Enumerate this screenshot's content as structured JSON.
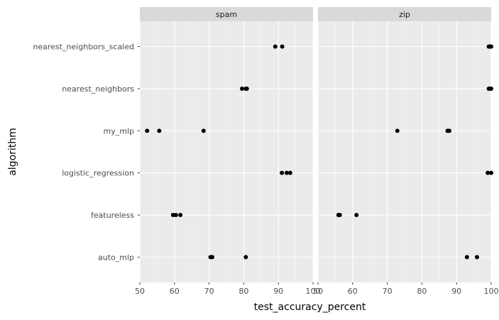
{
  "chart_data": {
    "type": "scatter",
    "title": "",
    "xlabel": "test_accuracy_percent",
    "ylabel": "algorithm",
    "xlim": [
      50,
      100
    ],
    "x_ticks": [
      50,
      60,
      70,
      80,
      90,
      100
    ],
    "categories": [
      "auto_mlp",
      "featureless",
      "logistic_regression",
      "my_mlp",
      "nearest_neighbors",
      "nearest_neighbors_scaled"
    ],
    "grid": true,
    "legend": "none",
    "colors": {
      "panel_bg": "#ebebeb",
      "strip_bg": "#d9d9d9",
      "grid_major": "#ffffff",
      "point": "#000000"
    },
    "facets": [
      {
        "name": "spam",
        "points": [
          {
            "algorithm": "nearest_neighbors_scaled",
            "x": 89.1
          },
          {
            "algorithm": "nearest_neighbors_scaled",
            "x": 91.1
          },
          {
            "algorithm": "nearest_neighbors",
            "x": 79.5
          },
          {
            "algorithm": "nearest_neighbors",
            "x": 80.6
          },
          {
            "algorithm": "nearest_neighbors",
            "x": 80.9
          },
          {
            "algorithm": "my_mlp",
            "x": 52.1
          },
          {
            "algorithm": "my_mlp",
            "x": 55.6
          },
          {
            "algorithm": "my_mlp",
            "x": 68.4
          },
          {
            "algorithm": "logistic_regression",
            "x": 91.0
          },
          {
            "algorithm": "logistic_regression",
            "x": 92.4
          },
          {
            "algorithm": "logistic_regression",
            "x": 93.4
          },
          {
            "algorithm": "featureless",
            "x": 59.6
          },
          {
            "algorithm": "featureless",
            "x": 60.4
          },
          {
            "algorithm": "featureless",
            "x": 61.7
          },
          {
            "algorithm": "auto_mlp",
            "x": 70.4
          },
          {
            "algorithm": "auto_mlp",
            "x": 70.9
          },
          {
            "algorithm": "auto_mlp",
            "x": 80.6
          }
        ]
      },
      {
        "name": "zip",
        "points": [
          {
            "algorithm": "nearest_neighbors_scaled",
            "x": 99.3
          },
          {
            "algorithm": "nearest_neighbors_scaled",
            "x": 99.7
          },
          {
            "algorithm": "nearest_neighbors_scaled",
            "x": 100.0
          },
          {
            "algorithm": "nearest_neighbors",
            "x": 99.3
          },
          {
            "algorithm": "nearest_neighbors",
            "x": 99.7
          },
          {
            "algorithm": "nearest_neighbors",
            "x": 100.0
          },
          {
            "algorithm": "my_mlp",
            "x": 72.9
          },
          {
            "algorithm": "my_mlp",
            "x": 87.4
          },
          {
            "algorithm": "my_mlp",
            "x": 87.9
          },
          {
            "algorithm": "logistic_regression",
            "x": 99.0
          },
          {
            "algorithm": "logistic_regression",
            "x": 100.0
          },
          {
            "algorithm": "featureless",
            "x": 55.9
          },
          {
            "algorithm": "featureless",
            "x": 56.3
          },
          {
            "algorithm": "featureless",
            "x": 61.1
          },
          {
            "algorithm": "auto_mlp",
            "x": 93.0
          },
          {
            "algorithm": "auto_mlp",
            "x": 95.9
          }
        ]
      }
    ]
  }
}
